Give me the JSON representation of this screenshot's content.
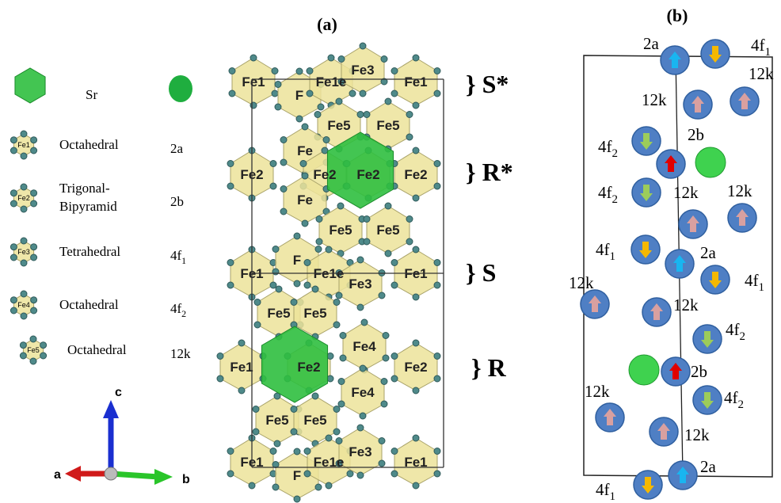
{
  "panel_a": {
    "title": "(a)",
    "atom_labels": [
      "Fe1",
      "F",
      "Fe1e",
      "Fe3",
      "Fe1",
      "Fe5",
      "Fe5",
      "Fe",
      "Fe2",
      "Fe2",
      "Fe2",
      "Fe2",
      "Fe",
      "Fe5",
      "Fe5",
      "Fe1",
      "F",
      "Fe1e",
      "Fe3",
      "Fe1",
      "Fe5",
      "Fe5",
      "Fe4",
      "Fe1",
      "Fe2",
      "Fe2",
      "Fe4",
      "Fe5",
      "Fe5",
      "Fe1",
      "F",
      "Fe1e",
      "Fe3",
      "Fe1"
    ],
    "blocks": [
      "} S*",
      "} R*",
      "} S",
      "} R"
    ]
  },
  "legend": {
    "rows": [
      {
        "lines": [
          "Sr"
        ]
      },
      {
        "icon": "Fe1",
        "lines": [
          "Octahedral"
        ],
        "site": "2a"
      },
      {
        "icon": "Fe2",
        "lines": [
          "Trigonal-",
          "Bipyramid"
        ],
        "site": "2b"
      },
      {
        "icon": "Fe3",
        "lines": [
          "Tetrahedral"
        ],
        "site": "4f",
        "sub": "1"
      },
      {
        "icon": "Fe4",
        "lines": [
          "Octahedral"
        ],
        "site": "4f",
        "sub": "2"
      },
      {
        "icon": "Fe5",
        "lines": [
          "Octahedral"
        ],
        "site": "12k"
      }
    ],
    "axes": [
      "a",
      "b",
      "c"
    ]
  },
  "panel_b": {
    "title": "(b)",
    "sites": [
      {
        "label": "2a"
      },
      {
        "label": "4f",
        "sub": "1"
      },
      {
        "label": "12k"
      },
      {
        "label": "12k"
      },
      {
        "label": "4f",
        "sub": "2"
      },
      {
        "label": "2b"
      },
      {
        "label": "4f",
        "sub": "2"
      },
      {
        "label": "12k"
      },
      {
        "label": "12k"
      },
      {
        "label": "4f",
        "sub": "1"
      },
      {
        "label": "2a"
      },
      {
        "label": "4f",
        "sub": "1"
      },
      {
        "label": "12k"
      },
      {
        "label": "12k"
      },
      {
        "label": "4f",
        "sub": "2"
      },
      {
        "label": "2b"
      },
      {
        "label": "12k"
      },
      {
        "label": "4f",
        "sub": "2"
      },
      {
        "label": "12k"
      },
      {
        "label": "2a"
      },
      {
        "label": "4f",
        "sub": "1"
      }
    ]
  }
}
